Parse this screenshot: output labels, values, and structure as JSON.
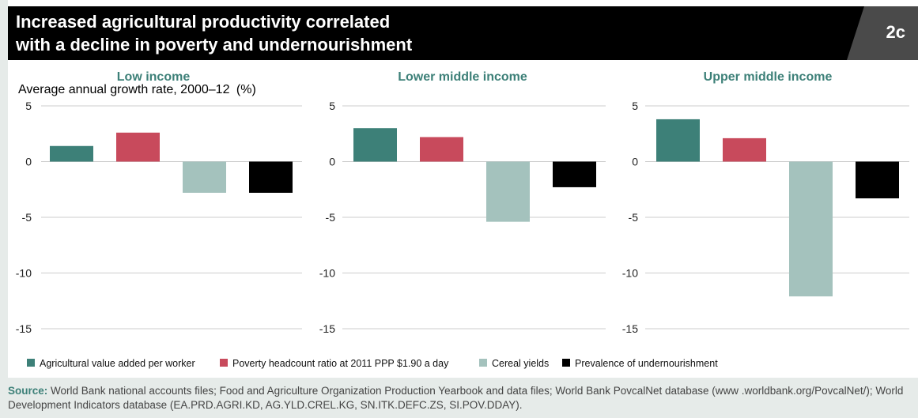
{
  "header": {
    "title": "Increased agricultural productivity correlated\nwith a decline in poverty and undernourishment",
    "badge": "2c"
  },
  "y_axis_title": {
    "main": "Average annual growth rate, 2000–12",
    "unit": "(%)"
  },
  "chart_data": [
    {
      "type": "bar",
      "title": "Low income",
      "categories": [
        "Agricultural value added per worker",
        "Poverty headcount ratio at 2011 PPP $1.90 a day",
        "Cereal yields",
        "Prevalence of undernourishment"
      ],
      "values": [
        1.4,
        2.6,
        -2.8,
        -2.8
      ],
      "ylim": [
        -15,
        5
      ],
      "yticks": [
        5,
        0,
        -5,
        -10,
        -15
      ],
      "ytick_labels": [
        "5",
        "0",
        "-5",
        "-10",
        "-15"
      ],
      "grid": true
    },
    {
      "type": "bar",
      "title": "Lower middle income",
      "categories": [
        "Agricultural value added per worker",
        "Poverty headcount ratio at 2011 PPP $1.90 a day",
        "Cereal yields",
        "Prevalence of undernourishment"
      ],
      "values": [
        3.0,
        2.2,
        -5.4,
        -2.3
      ],
      "ylim": [
        -15,
        5
      ],
      "yticks": [
        5,
        0,
        -5,
        -10,
        -15
      ],
      "ytick_labels": [
        "5",
        "0",
        "-5",
        "-10",
        "-15"
      ],
      "grid": true
    },
    {
      "type": "bar",
      "title": "Upper middle income",
      "categories": [
        "Agricultural value added per worker",
        "Poverty headcount ratio at 2011 PPP $1.90 a day",
        "Cereal yields",
        "Prevalence of undernourishment"
      ],
      "values": [
        3.8,
        2.1,
        -12.1,
        -3.3
      ],
      "ylim": [
        -15,
        5
      ],
      "yticks": [
        5,
        0,
        -5,
        -10,
        -15
      ],
      "ytick_labels": [
        "5",
        "0",
        "-5",
        "-10",
        "-15"
      ],
      "grid": true
    }
  ],
  "legend": {
    "placement": "bottom",
    "items": [
      {
        "label": "Agricultural value added per worker",
        "color": "#3d8078"
      },
      {
        "label": "Poverty headcount ratio at 2011 PPP $1.90 a day",
        "color": "#c84a5c"
      },
      {
        "label": "Cereal yields",
        "color": "#a4c2bd"
      },
      {
        "label": "Prevalence of undernourishment",
        "color": "#000000"
      }
    ]
  },
  "colors": {
    "accent": "#3d8078",
    "title_bar": "#000000",
    "badge": "#4a4a4a",
    "gridline": "#cccccc"
  },
  "source": {
    "label": "Source:",
    "text": " World Bank national accounts files; Food and Agriculture Organization Production Yearbook and data files; World Bank PovcalNet database (www .worldbank.org/PovcalNet/); World Development Indicators database (EA.PRD.AGRI.KD, AG.YLD.CREL.KG, SN.ITK.DEFC.ZS, SI.POV.DDAY)."
  }
}
